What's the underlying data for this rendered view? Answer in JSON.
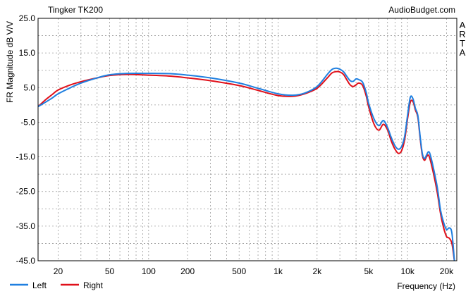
{
  "chart_data": {
    "type": "line",
    "title": "Tingker TK200",
    "source": "AudioBudget.com",
    "side_label": [
      "A",
      "R",
      "T",
      "A"
    ],
    "xlabel": "Frequency (Hz)",
    "ylabel": "FR Magnitude dB V/V",
    "x_scale": "log",
    "xlim": [
      14,
      24000
    ],
    "ylim": [
      -45,
      25
    ],
    "grid": true,
    "legend_position": "bottom-left",
    "x_ticks": [
      {
        "value": 20,
        "label": "20"
      },
      {
        "value": 50,
        "label": "50"
      },
      {
        "value": 100,
        "label": "100"
      },
      {
        "value": 200,
        "label": "200"
      },
      {
        "value": 500,
        "label": "500"
      },
      {
        "value": 1000,
        "label": "1k"
      },
      {
        "value": 2000,
        "label": "2k"
      },
      {
        "value": 5000,
        "label": "5k"
      },
      {
        "value": 10000,
        "label": "10k"
      },
      {
        "value": 20000,
        "label": "20k"
      }
    ],
    "y_ticks": [
      {
        "value": 25,
        "label": "25.0"
      },
      {
        "value": 15,
        "label": "15.0"
      },
      {
        "value": 5,
        "label": "5.0"
      },
      {
        "value": -5,
        "label": "-5.0"
      },
      {
        "value": -15,
        "label": "-15.0"
      },
      {
        "value": -25,
        "label": "-25.0"
      },
      {
        "value": -35,
        "label": "-35.0"
      },
      {
        "value": -45,
        "label": "-45.0"
      }
    ],
    "series": [
      {
        "name": "Left",
        "color": "#1f7fe0",
        "points": [
          [
            14,
            -0.5
          ],
          [
            16,
            0.8
          ],
          [
            18,
            2.0
          ],
          [
            20,
            3.2
          ],
          [
            25,
            5.0
          ],
          [
            30,
            6.3
          ],
          [
            40,
            7.8
          ],
          [
            50,
            8.7
          ],
          [
            70,
            9.1
          ],
          [
            100,
            9.1
          ],
          [
            150,
            9.0
          ],
          [
            200,
            8.6
          ],
          [
            300,
            7.8
          ],
          [
            500,
            6.3
          ],
          [
            700,
            4.8
          ],
          [
            1000,
            3.2
          ],
          [
            1300,
            2.8
          ],
          [
            1600,
            3.4
          ],
          [
            2000,
            5.3
          ],
          [
            2400,
            8.8
          ],
          [
            2600,
            10.2
          ],
          [
            2800,
            10.6
          ],
          [
            3000,
            10.3
          ],
          [
            3200,
            9.6
          ],
          [
            3400,
            8.2
          ],
          [
            3600,
            7.0
          ],
          [
            3800,
            6.8
          ],
          [
            4000,
            7.5
          ],
          [
            4200,
            7.3
          ],
          [
            4500,
            6.5
          ],
          [
            4800,
            3.5
          ],
          [
            5000,
            0.5
          ],
          [
            5500,
            -4.0
          ],
          [
            6000,
            -6.0
          ],
          [
            6500,
            -4.5
          ],
          [
            7000,
            -6.5
          ],
          [
            7500,
            -9.5
          ],
          [
            8000,
            -11.8
          ],
          [
            8500,
            -12.8
          ],
          [
            9000,
            -12.0
          ],
          [
            9500,
            -9.0
          ],
          [
            10000,
            -3.0
          ],
          [
            10500,
            2.2
          ],
          [
            11000,
            1.8
          ],
          [
            11500,
            -1.0
          ],
          [
            12000,
            -3.0
          ],
          [
            12500,
            -9.0
          ],
          [
            13000,
            -14.0
          ],
          [
            13500,
            -15.5
          ],
          [
            14000,
            -14.5
          ],
          [
            14500,
            -13.5
          ],
          [
            15000,
            -14.5
          ],
          [
            16000,
            -19.0
          ],
          [
            17000,
            -24.0
          ],
          [
            18000,
            -30.5
          ],
          [
            19000,
            -34.0
          ],
          [
            20000,
            -36.0
          ],
          [
            21000,
            -35.5
          ],
          [
            22000,
            -37.0
          ],
          [
            23000,
            -45.0
          ]
        ]
      },
      {
        "name": "Right",
        "color": "#e0101a",
        "points": [
          [
            14,
            -0.5
          ],
          [
            16,
            1.5
          ],
          [
            18,
            3.0
          ],
          [
            20,
            4.3
          ],
          [
            25,
            5.8
          ],
          [
            30,
            6.7
          ],
          [
            40,
            7.8
          ],
          [
            50,
            8.5
          ],
          [
            70,
            8.8
          ],
          [
            100,
            8.6
          ],
          [
            150,
            8.3
          ],
          [
            200,
            7.8
          ],
          [
            300,
            7.0
          ],
          [
            500,
            5.6
          ],
          [
            700,
            4.2
          ],
          [
            1000,
            2.7
          ],
          [
            1300,
            2.5
          ],
          [
            1600,
            3.2
          ],
          [
            2000,
            4.8
          ],
          [
            2400,
            7.8
          ],
          [
            2600,
            9.2
          ],
          [
            2800,
            9.6
          ],
          [
            3000,
            9.5
          ],
          [
            3200,
            8.8
          ],
          [
            3400,
            7.2
          ],
          [
            3600,
            5.8
          ],
          [
            3800,
            5.3
          ],
          [
            4000,
            5.8
          ],
          [
            4200,
            6.3
          ],
          [
            4500,
            5.6
          ],
          [
            4800,
            2.5
          ],
          [
            5000,
            -0.5
          ],
          [
            5500,
            -5.5
          ],
          [
            6000,
            -7.3
          ],
          [
            6500,
            -5.6
          ],
          [
            7000,
            -7.2
          ],
          [
            7500,
            -10.5
          ],
          [
            8000,
            -12.8
          ],
          [
            8500,
            -14.0
          ],
          [
            9000,
            -13.2
          ],
          [
            9500,
            -10.0
          ],
          [
            10000,
            -4.0
          ],
          [
            10500,
            0.8
          ],
          [
            11000,
            1.0
          ],
          [
            11500,
            -1.5
          ],
          [
            12000,
            -3.5
          ],
          [
            12500,
            -9.5
          ],
          [
            13000,
            -14.5
          ],
          [
            13500,
            -16.0
          ],
          [
            14000,
            -15.0
          ],
          [
            14500,
            -14.5
          ],
          [
            15000,
            -16.0
          ],
          [
            16000,
            -20.5
          ],
          [
            17000,
            -25.5
          ],
          [
            18000,
            -31.5
          ],
          [
            19000,
            -35.5
          ],
          [
            20000,
            -38.0
          ],
          [
            21000,
            -38.5
          ],
          [
            22000,
            -40.0
          ],
          [
            23000,
            -45.0
          ]
        ]
      }
    ]
  }
}
